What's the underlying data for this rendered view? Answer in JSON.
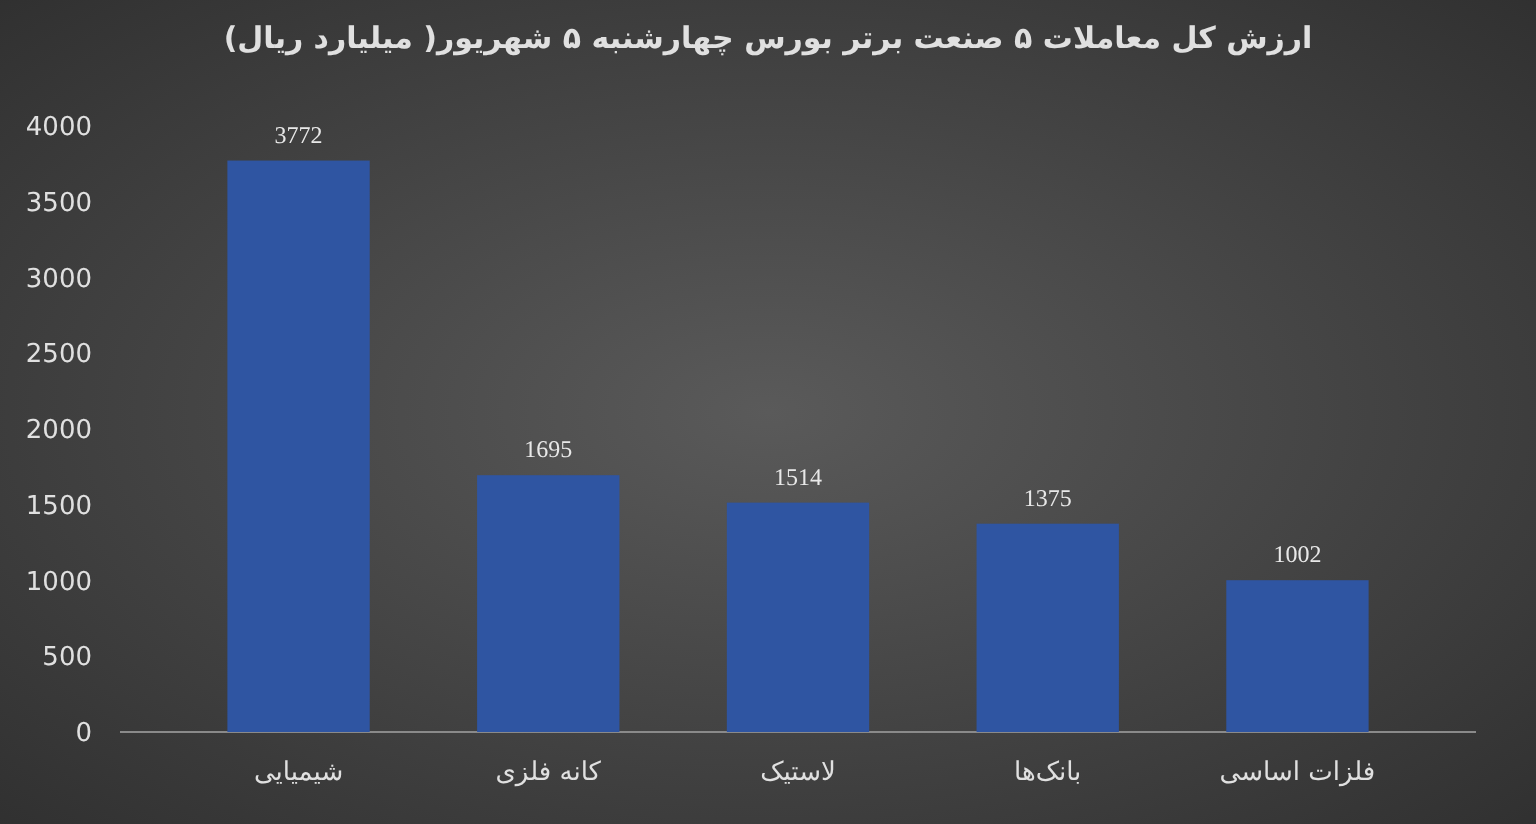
{
  "chart_data": {
    "type": "bar",
    "title": "ارزش کل معاملات ۵ صنعت برتر بورس چهارشنبه ۵ شهریور( میلیارد ریال)",
    "categories": [
      "شیمیایی",
      "کانه فلزی",
      "لاستیک",
      "بانک‌ها",
      "فلزات اساسی"
    ],
    "values": [
      3772,
      1695,
      1514,
      1375,
      1002
    ],
    "color": "#2f55a2",
    "ylim": [
      0,
      4000
    ],
    "yticks": [
      0,
      500,
      1000,
      1500,
      2000,
      2500,
      3000,
      3500,
      4000
    ],
    "data_labels": true
  }
}
